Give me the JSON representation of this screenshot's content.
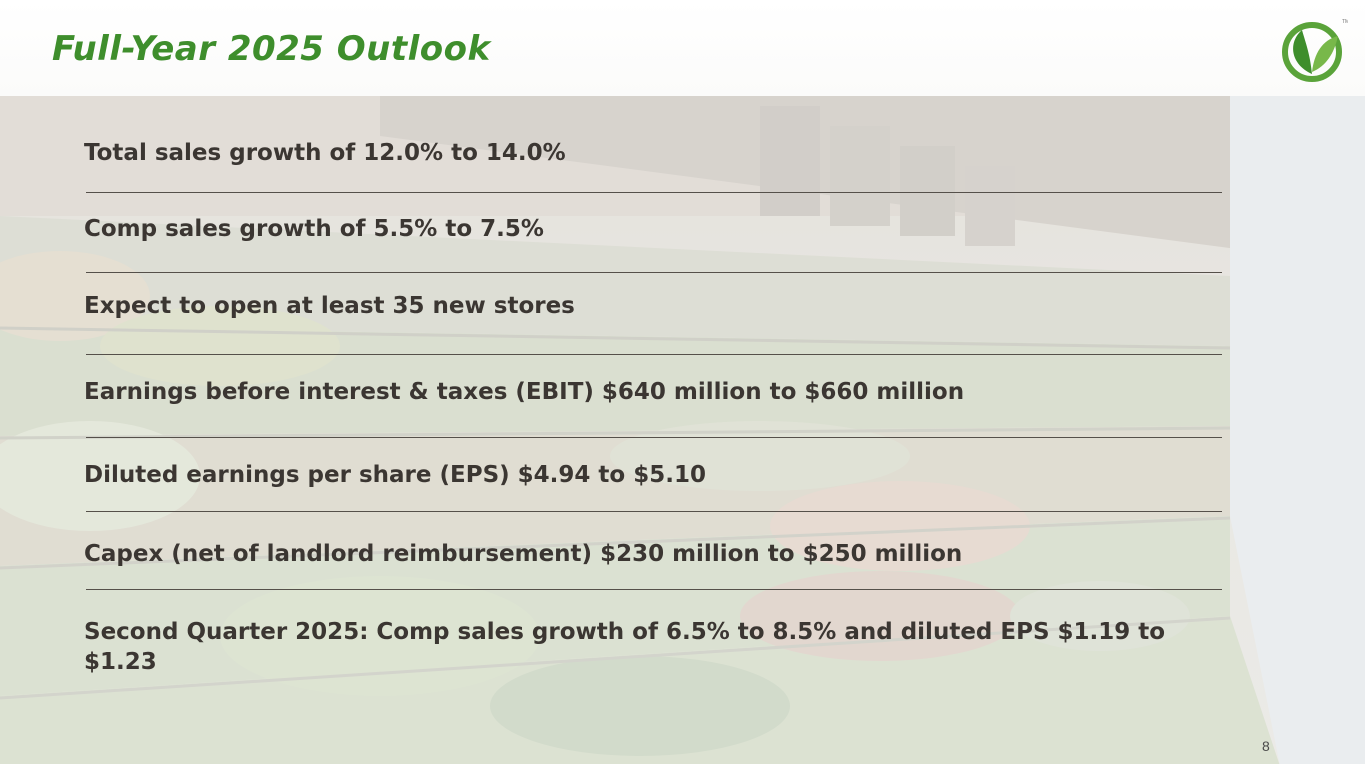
{
  "slide": {
    "title": "Full-Year 2025 Outlook",
    "page_number": "8",
    "accent_color": "#3e8e2c",
    "text_color": "#3b3632",
    "logo_icon": "sprouts-leaf-logo"
  },
  "outlook_items": [
    "Total sales growth of 12.0% to 14.0%",
    "Comp sales growth of  5.5% to 7.5%",
    "Expect to open at least 35 new stores",
    "Earnings before interest & taxes (EBIT) $640 million to $660 million",
    "Diluted earnings per share (EPS) $4.94 to $5.10",
    "Capex (net of landlord reimbursement) $230 million to $250 million",
    "Second Quarter 2025: Comp sales growth of  6.5% to 8.5% and diluted EPS $1.19 to $1.23"
  ]
}
